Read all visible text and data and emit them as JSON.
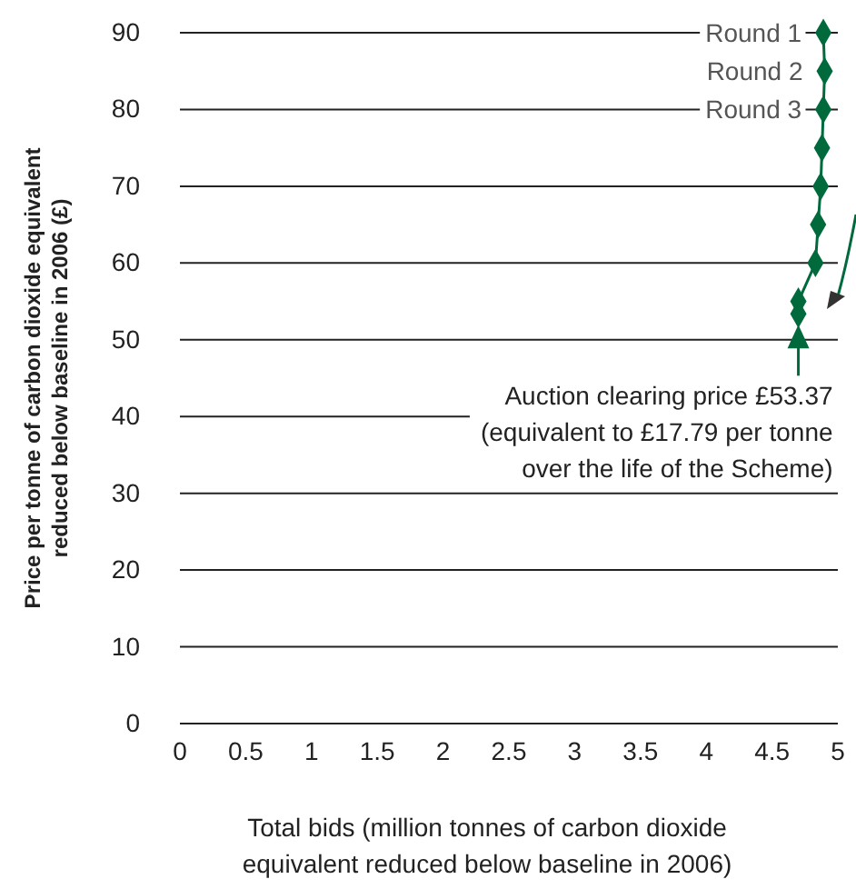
{
  "chart_data": {
    "type": "line",
    "xlabel": "Total bids (million tonnes of carbon dioxide\nequivalent reduced below baseline in 2006)",
    "ylabel": "Price per tonne of carbon dioxide equivalent\nreduced below baseline in 2006 (£)",
    "x": [
      4.89,
      4.9,
      4.89,
      4.88,
      4.87,
      4.85,
      4.83,
      4.7,
      4.7
    ],
    "series": [
      {
        "color": "#006a3d",
        "values": [
          90,
          85,
          80,
          75,
          70,
          65,
          60,
          55,
          53.37
        ]
      }
    ],
    "marker": "diamond",
    "line_style": "solid",
    "grid": "y",
    "xlim": [
      0,
      5
    ],
    "xticks": [
      0,
      0.5,
      1,
      1.5,
      2,
      2.5,
      3,
      3.5,
      4,
      4.5,
      5
    ],
    "ylim": [
      0,
      90
    ],
    "yticks": [
      0,
      10,
      20,
      30,
      40,
      50,
      60,
      70,
      80,
      90
    ],
    "annotations": [
      {
        "text": "Round 1",
        "x": 4.89,
        "y": 90
      },
      {
        "text": "Round 2",
        "x": 4.9,
        "y": 85
      },
      {
        "text": "Round 3",
        "x": 4.89,
        "y": 80
      },
      {
        "text": "Auction clearing price £53.37\n(equivalent to £17.79 per tonne\nover the life of the Scheme)",
        "x": 4.7,
        "y": 53.37
      }
    ]
  }
}
